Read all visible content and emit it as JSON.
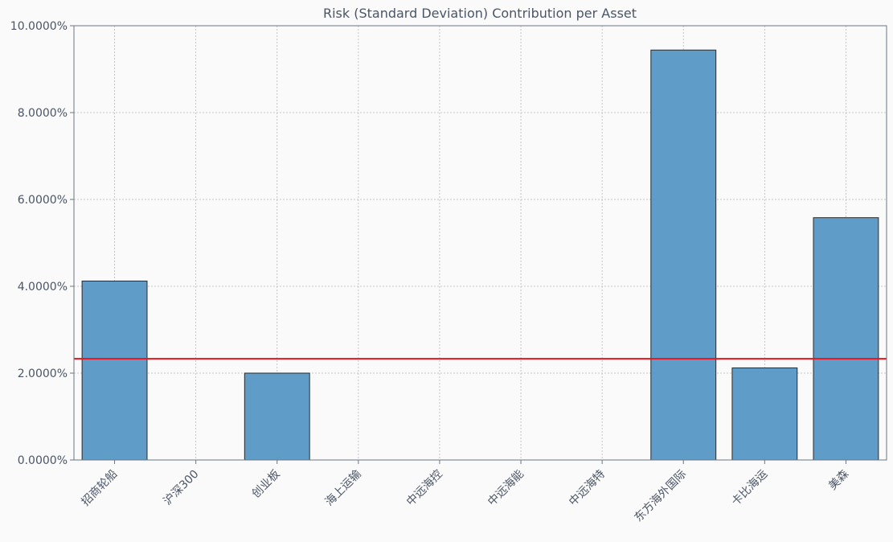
{
  "chart_data": {
    "type": "bar",
    "title": "Risk (Standard Deviation) Contribution per Asset",
    "xlabel": "",
    "ylabel": "",
    "categories": [
      "招商轮船",
      "沪深300",
      "创业板",
      "海上运输",
      "中远海控",
      "中远海能",
      "中远海特",
      "东方海外国际",
      "卡比海运",
      "美森"
    ],
    "values": [
      4.12,
      0.0,
      2.0,
      0.0,
      0.0,
      0.0,
      0.0,
      9.44,
      2.12,
      5.58
    ],
    "ylim": [
      0,
      10
    ],
    "yticks": [
      0,
      2,
      4,
      6,
      8,
      10
    ],
    "ytick_labels": [
      "0.0000%",
      "2.0000%",
      "4.0000%",
      "6.0000%",
      "8.0000%",
      "10.0000%"
    ],
    "reference_line": 2.33,
    "grid": true,
    "colors": {
      "bar_fill": "#5f9dc8",
      "bar_edge": "#2b2b2b",
      "reference_line": "#e8141e",
      "grid": "#b8b8b8",
      "axis": "#6b7585",
      "text": "#4a5566",
      "background": "#fafafa"
    }
  }
}
